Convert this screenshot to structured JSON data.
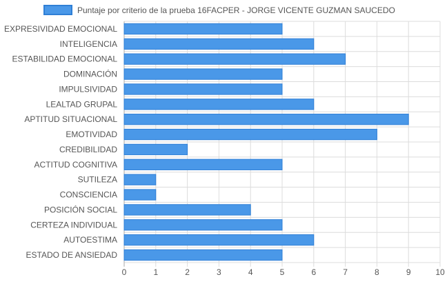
{
  "chart_data": {
    "type": "bar",
    "orientation": "horizontal",
    "legend_label": "Puntaje por criterio de la prueba 16FACPER - JORGE VICENTE GUZMAN SAUCEDO",
    "legend_position": "top",
    "categories": [
      "EXPRESIVIDAD EMOCIONAL",
      "INTELIGENCIA",
      "ESTABILIDAD EMOCIONAL",
      "DOMINACIÓN",
      "IMPULSIVIDAD",
      "LEALTAD GRUPAL",
      "APTITUD SITUACIONAL",
      "EMOTIVIDAD",
      "CREDIBILIDAD",
      "ACTITUD COGNITIVA",
      "SUTILEZA",
      "CONSCIENCIA",
      "POSICIÓN SOCIAL",
      "CERTEZA INDIVIDUAL",
      "AUTOESTIMA",
      "ESTADO DE ANSIEDAD"
    ],
    "values": [
      5,
      6,
      7,
      5,
      5,
      6,
      9,
      8,
      2,
      5,
      1,
      1,
      4,
      5,
      6,
      5
    ],
    "xlim": [
      0,
      10
    ],
    "xticks": [
      "0",
      "1",
      "2",
      "3",
      "4",
      "5",
      "6",
      "7",
      "8",
      "9",
      "10"
    ],
    "grid": true,
    "bar_color": "#4a98e8",
    "bar_border_color": "#2f7fd6",
    "grid_color": "#dcdcdc",
    "axis_text_color": "#555555"
  }
}
